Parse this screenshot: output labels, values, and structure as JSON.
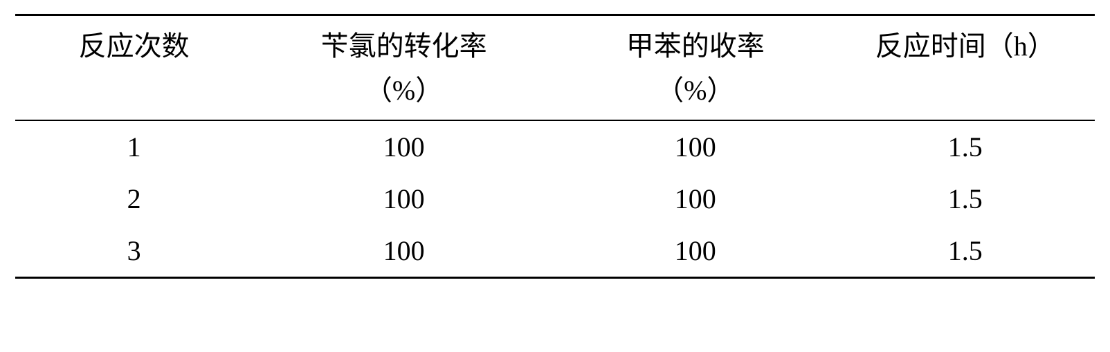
{
  "table": {
    "type": "table",
    "background_color": "#ffffff",
    "text_color": "#000000",
    "border_color": "#000000",
    "border_top_width": 3,
    "border_bottom_width": 3,
    "header_border_width": 2,
    "font_family_cjk": "SimSun",
    "font_family_numeric": "Times New Roman",
    "header_fontsize": 40,
    "cell_fontsize": 40,
    "column_widths_pct": [
      22,
      28,
      26,
      24
    ],
    "columns": [
      {
        "line1": "反应次数",
        "line2": ""
      },
      {
        "line1": "苄氯的转化率",
        "line2": "（%）"
      },
      {
        "line1": "甲苯的收率",
        "line2": "（%）"
      },
      {
        "line1": "反应时间（h）",
        "line2": ""
      }
    ],
    "rows": [
      [
        "1",
        "100",
        "100",
        "1.5"
      ],
      [
        "2",
        "100",
        "100",
        "1.5"
      ],
      [
        "3",
        "100",
        "100",
        "1.5"
      ]
    ]
  }
}
